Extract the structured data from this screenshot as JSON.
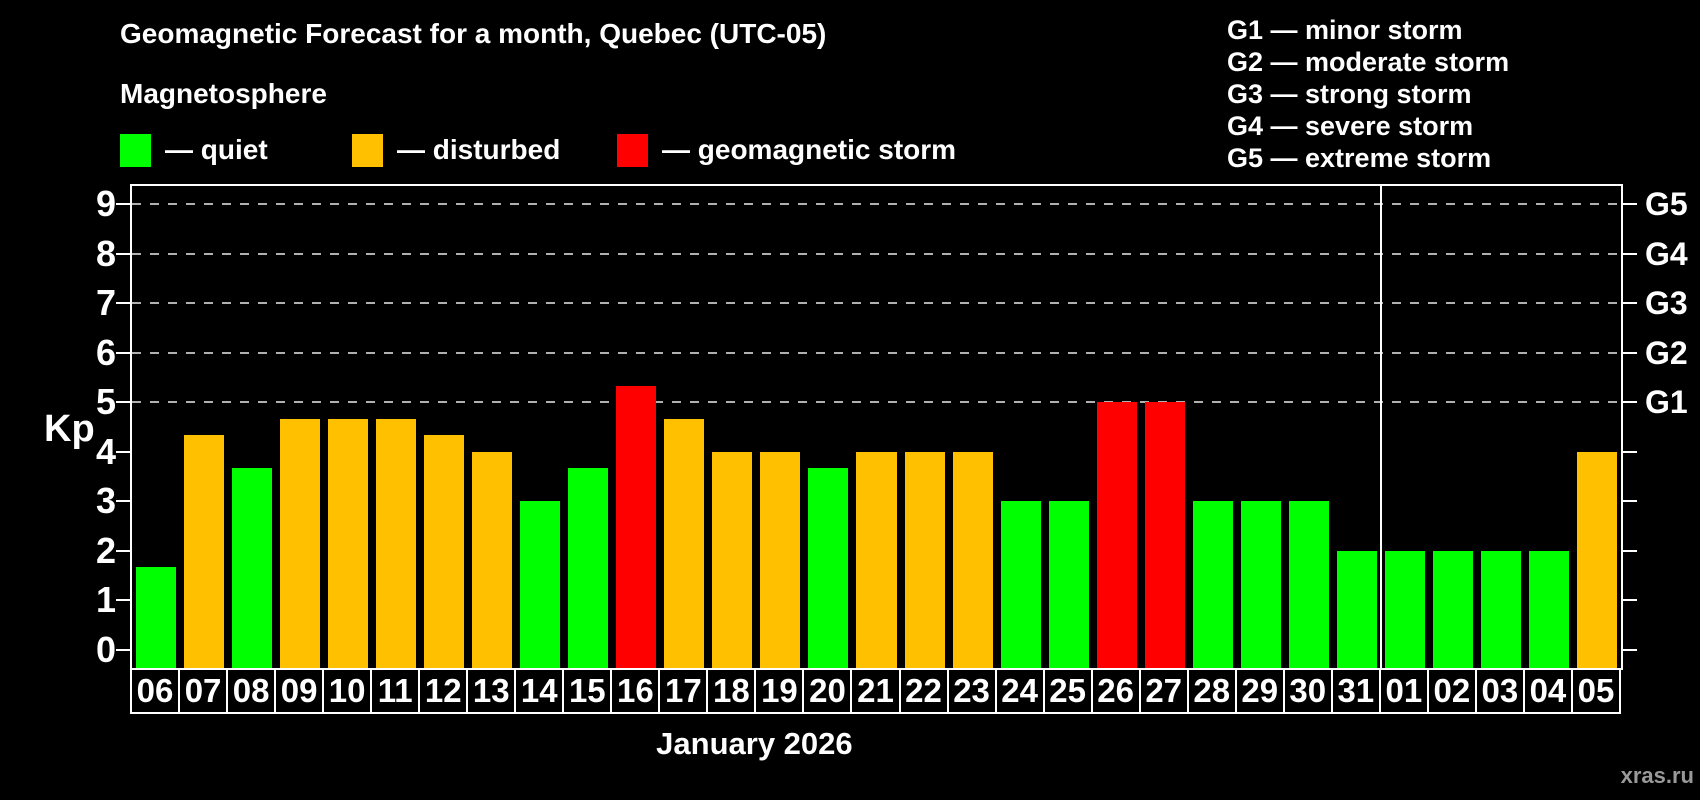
{
  "header": {
    "title": "Geomagnetic Forecast for a month, Quebec (UTC-05)",
    "subtitle": "Magnetosphere"
  },
  "legend": {
    "items": [
      {
        "state": "quiet",
        "label": "— quiet",
        "color": "#00ff00"
      },
      {
        "state": "disturbed",
        "label": "— disturbed",
        "color": "#ffc000"
      },
      {
        "state": "storm",
        "label": "— geomagnetic storm",
        "color": "#ff0000"
      }
    ]
  },
  "storm_scale_legend": {
    "lines": [
      "G1 — minor storm",
      "G2 — moderate storm",
      "G3 — strong storm",
      "G4 — severe storm",
      "G5 — extreme storm"
    ]
  },
  "chart_data": {
    "type": "bar",
    "title": "Geomagnetic Forecast for a month, Quebec (UTC-05)",
    "ylabel": "Kp",
    "xlabel": "January 2026",
    "ylim": [
      0,
      9
    ],
    "y_ticks": [
      0,
      1,
      2,
      3,
      4,
      5,
      6,
      7,
      8,
      9
    ],
    "gridlines_at_kp": [
      5,
      6,
      7,
      8,
      9
    ],
    "grid_style": "dashed horizontal lines at G-storm levels only",
    "legend_position": "top-left",
    "right_axis": {
      "ticks_at_kp": [
        0,
        1,
        2,
        3,
        4,
        5,
        6,
        7,
        8,
        9
      ],
      "labels": [
        {
          "kp": 5,
          "label": "G1"
        },
        {
          "kp": 6,
          "label": "G2"
        },
        {
          "kp": 7,
          "label": "G3"
        },
        {
          "kp": 8,
          "label": "G4"
        },
        {
          "kp": 9,
          "label": "G5"
        }
      ]
    },
    "month_separator_after_day": "31",
    "separator_slot_index": 26,
    "colors": {
      "quiet": "#00ff00",
      "disturbed": "#ffc000",
      "storm": "#ff0000",
      "background": "#000000",
      "axis": "#ffffff",
      "gridline": "#b0b0b0"
    },
    "categories": [
      "06",
      "07",
      "08",
      "09",
      "10",
      "11",
      "12",
      "13",
      "14",
      "15",
      "16",
      "17",
      "18",
      "19",
      "20",
      "21",
      "22",
      "23",
      "24",
      "25",
      "26",
      "27",
      "28",
      "29",
      "30",
      "31",
      "01",
      "02",
      "03",
      "04",
      "05"
    ],
    "bars": [
      {
        "day": "06",
        "kp": 1.67,
        "state": "quiet"
      },
      {
        "day": "07",
        "kp": 4.33,
        "state": "disturbed"
      },
      {
        "day": "08",
        "kp": 3.67,
        "state": "quiet"
      },
      {
        "day": "09",
        "kp": 4.67,
        "state": "disturbed"
      },
      {
        "day": "10",
        "kp": 4.67,
        "state": "disturbed"
      },
      {
        "day": "11",
        "kp": 4.67,
        "state": "disturbed"
      },
      {
        "day": "12",
        "kp": 4.33,
        "state": "disturbed"
      },
      {
        "day": "13",
        "kp": 4.0,
        "state": "disturbed"
      },
      {
        "day": "14",
        "kp": 3.0,
        "state": "quiet"
      },
      {
        "day": "15",
        "kp": 3.67,
        "state": "quiet"
      },
      {
        "day": "16",
        "kp": 5.33,
        "state": "storm"
      },
      {
        "day": "17",
        "kp": 4.67,
        "state": "disturbed"
      },
      {
        "day": "18",
        "kp": 4.0,
        "state": "disturbed"
      },
      {
        "day": "19",
        "kp": 4.0,
        "state": "disturbed"
      },
      {
        "day": "20",
        "kp": 3.67,
        "state": "quiet"
      },
      {
        "day": "21",
        "kp": 4.0,
        "state": "disturbed"
      },
      {
        "day": "22",
        "kp": 4.0,
        "state": "disturbed"
      },
      {
        "day": "23",
        "kp": 4.0,
        "state": "disturbed"
      },
      {
        "day": "24",
        "kp": 3.0,
        "state": "quiet"
      },
      {
        "day": "25",
        "kp": 3.0,
        "state": "quiet"
      },
      {
        "day": "26",
        "kp": 5.0,
        "state": "storm"
      },
      {
        "day": "27",
        "kp": 5.0,
        "state": "storm"
      },
      {
        "day": "28",
        "kp": 3.0,
        "state": "quiet"
      },
      {
        "day": "29",
        "kp": 3.0,
        "state": "quiet"
      },
      {
        "day": "30",
        "kp": 3.0,
        "state": "quiet"
      },
      {
        "day": "31",
        "kp": 2.0,
        "state": "quiet"
      },
      {
        "day": "01",
        "kp": 2.0,
        "state": "quiet"
      },
      {
        "day": "02",
        "kp": 2.0,
        "state": "quiet"
      },
      {
        "day": "03",
        "kp": 2.0,
        "state": "quiet"
      },
      {
        "day": "04",
        "kp": 2.0,
        "state": "quiet"
      },
      {
        "day": "05",
        "kp": 4.0,
        "state": "disturbed"
      }
    ]
  },
  "footer": {
    "month_label": "January 2026",
    "watermark": "xras.ru"
  }
}
